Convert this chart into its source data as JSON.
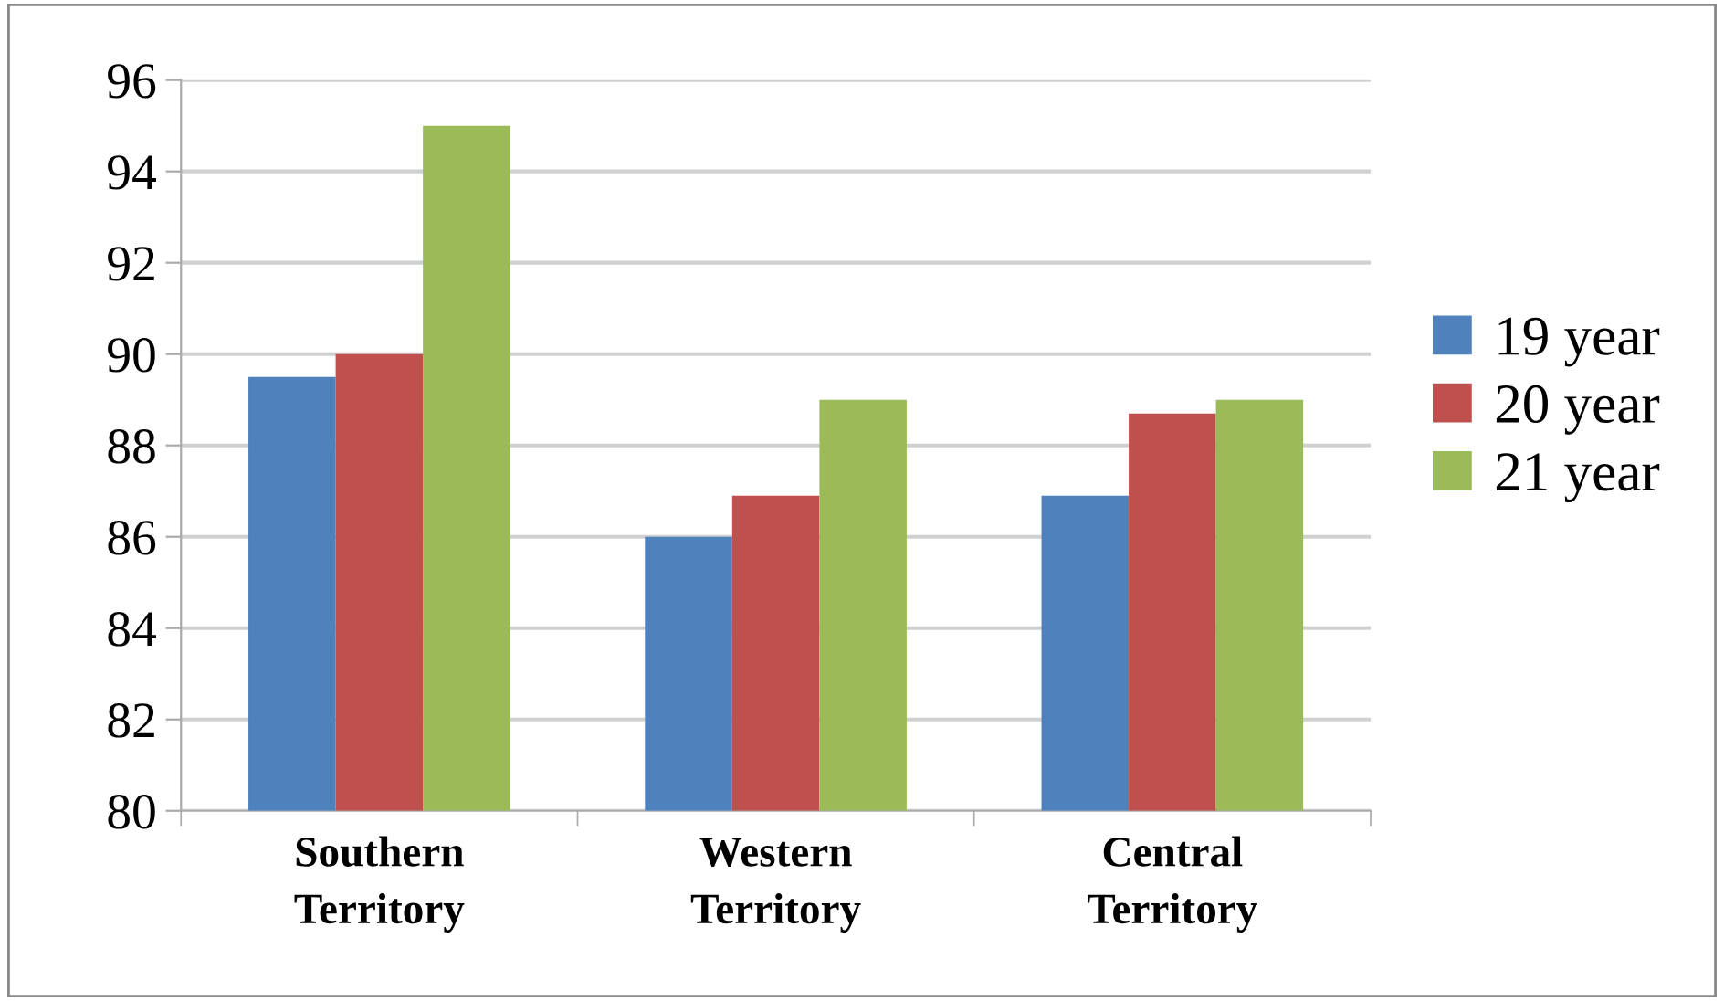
{
  "chart_data": {
    "type": "bar",
    "categories": [
      "Southern\nTerritory",
      "Western\nTerritory",
      "Central\nTerritory"
    ],
    "series": [
      {
        "name": "19 year",
        "color": "#4f81bd",
        "values": [
          89.5,
          86.0,
          86.9
        ]
      },
      {
        "name": "20 year",
        "color": "#c0504d",
        "values": [
          90.0,
          86.9,
          88.7
        ]
      },
      {
        "name": "21 year",
        "color": "#9bbb59",
        "values": [
          95.0,
          89.0,
          89.0
        ]
      }
    ],
    "ylim": [
      80,
      96
    ],
    "yticks": [
      80,
      82,
      84,
      86,
      88,
      90,
      92,
      94,
      96
    ],
    "grid": "y",
    "legend": "right"
  }
}
